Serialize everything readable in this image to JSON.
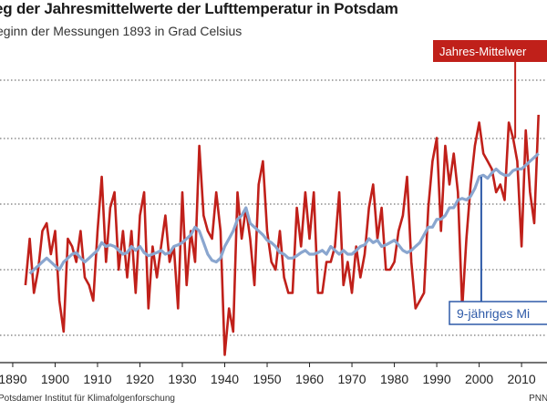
{
  "header": {
    "title": "eg der Jahresmittelwerte der Lufttemperatur in Potsdam",
    "subtitle": "eginn der Messungen 1893 in Grad Celsius"
  },
  "footer": {
    "source": "Potsdamer Institut für Klimafolgenforschung",
    "credit": "PNN/"
  },
  "colors": {
    "annual": "#c0201a",
    "moving_avg": "#8aa6cf",
    "grid": "#555555",
    "label_blue": "#2e5aa8"
  },
  "chart_data": {
    "type": "line",
    "title": "",
    "xlabel": "",
    "ylabel": "",
    "xlim": [
      1887,
      2016
    ],
    "ylim": [
      7.2,
      10.8
    ],
    "x_ticks": [
      "1890",
      "1900",
      "1910",
      "1920",
      "1930",
      "1940",
      "1950",
      "1960",
      "1970",
      "1980",
      "1990",
      "2000",
      "2010"
    ],
    "grid": "horizontal",
    "annotations": [
      "Jahres-Mittelwer",
      "9-jähriges Mi"
    ],
    "series": [
      {
        "name": "Jahres-Mittelwer",
        "x": [
          1893,
          1894,
          1895,
          1896,
          1897,
          1898,
          1899,
          1900,
          1901,
          1902,
          1903,
          1904,
          1905,
          1906,
          1907,
          1908,
          1909,
          1910,
          1911,
          1912,
          1913,
          1914,
          1915,
          1916,
          1917,
          1918,
          1919,
          1920,
          1921,
          1922,
          1923,
          1924,
          1925,
          1926,
          1927,
          1928,
          1929,
          1930,
          1931,
          1932,
          1933,
          1934,
          1935,
          1936,
          1937,
          1938,
          1939,
          1940,
          1941,
          1942,
          1943,
          1944,
          1945,
          1946,
          1947,
          1948,
          1949,
          1950,
          1951,
          1952,
          1953,
          1954,
          1955,
          1956,
          1957,
          1958,
          1959,
          1960,
          1961,
          1962,
          1963,
          1964,
          1965,
          1966,
          1967,
          1968,
          1969,
          1970,
          1971,
          1972,
          1973,
          1974,
          1975,
          1976,
          1977,
          1978,
          1979,
          1980,
          1981,
          1982,
          1983,
          1984,
          1985,
          1986,
          1987,
          1988,
          1989,
          1990,
          1991,
          1992,
          1993,
          1994,
          1995,
          1996,
          1997,
          1998,
          1999,
          2000,
          2001,
          2002,
          2003,
          2004,
          2005,
          2006,
          2007,
          2008,
          2009,
          2010,
          2011,
          2012,
          2013,
          2014
        ],
        "values": [
          8.2,
          8.8,
          8.1,
          8.4,
          8.9,
          9.0,
          8.6,
          8.9,
          8.0,
          7.6,
          8.8,
          8.7,
          8.5,
          8.9,
          8.3,
          8.2,
          8.0,
          8.9,
          9.6,
          8.5,
          9.2,
          9.4,
          8.4,
          8.9,
          8.3,
          8.9,
          8.1,
          9.1,
          9.4,
          7.9,
          8.7,
          8.3,
          8.7,
          9.1,
          8.5,
          8.7,
          7.9,
          9.4,
          8.2,
          8.9,
          8.5,
          10.0,
          9.1,
          8.9,
          8.8,
          9.4,
          8.9,
          7.3,
          7.9,
          7.6,
          9.4,
          8.8,
          9.2,
          8.8,
          8.2,
          9.5,
          9.8,
          8.9,
          8.5,
          8.4,
          8.9,
          8.3,
          8.1,
          8.1,
          9.2,
          8.7,
          9.4,
          8.8,
          9.4,
          8.1,
          8.1,
          8.5,
          8.5,
          8.7,
          9.4,
          8.2,
          8.5,
          8.1,
          8.7,
          8.3,
          8.6,
          9.2,
          9.5,
          8.8,
          9.2,
          8.4,
          8.4,
          8.5,
          8.9,
          9.1,
          9.6,
          8.5,
          7.9,
          8.0,
          8.1,
          9.2,
          9.8,
          10.1,
          8.9,
          10.0,
          9.5,
          9.9,
          9.4,
          7.9,
          8.8,
          9.5,
          10.0,
          10.3,
          9.9,
          9.8,
          9.7,
          9.4,
          9.5,
          9.3,
          10.3,
          10.1,
          9.8,
          8.7,
          10.2,
          9.4,
          9.0,
          10.4
        ]
      },
      {
        "name": "9-jähriges Mi",
        "x": [
          1894,
          1895,
          1896,
          1897,
          1898,
          1899,
          1900,
          1901,
          1902,
          1903,
          1904,
          1905,
          1906,
          1907,
          1908,
          1909,
          1910,
          1911,
          1912,
          1913,
          1914,
          1915,
          1916,
          1917,
          1918,
          1919,
          1920,
          1921,
          1922,
          1923,
          1924,
          1925,
          1926,
          1927,
          1928,
          1929,
          1930,
          1931,
          1932,
          1933,
          1934,
          1935,
          1936,
          1937,
          1938,
          1939,
          1940,
          1941,
          1942,
          1943,
          1944,
          1945,
          1946,
          1947,
          1948,
          1949,
          1950,
          1951,
          1952,
          1953,
          1954,
          1955,
          1956,
          1957,
          1958,
          1959,
          1960,
          1961,
          1962,
          1963,
          1964,
          1965,
          1966,
          1967,
          1968,
          1969,
          1970,
          1971,
          1972,
          1973,
          1974,
          1975,
          1976,
          1977,
          1978,
          1979,
          1980,
          1981,
          1982,
          1983,
          1984,
          1985,
          1986,
          1987,
          1988,
          1989,
          1990,
          1991,
          1992,
          1993,
          1994,
          1995,
          1996,
          1997,
          1998,
          1999,
          2000,
          2001,
          2002,
          2003,
          2004,
          2005,
          2006,
          2007,
          2008,
          2009,
          2010,
          2011,
          2012,
          2013,
          2014
        ],
        "values": [
          8.35,
          8.4,
          8.45,
          8.5,
          8.55,
          8.5,
          8.45,
          8.4,
          8.5,
          8.55,
          8.6,
          8.62,
          8.55,
          8.5,
          8.55,
          8.6,
          8.65,
          8.75,
          8.7,
          8.72,
          8.7,
          8.65,
          8.6,
          8.62,
          8.7,
          8.65,
          8.7,
          8.62,
          8.58,
          8.6,
          8.62,
          8.65,
          8.6,
          8.62,
          8.7,
          8.72,
          8.75,
          8.8,
          8.85,
          8.95,
          8.9,
          8.75,
          8.6,
          8.52,
          8.5,
          8.55,
          8.7,
          8.8,
          8.9,
          9.05,
          9.1,
          9.2,
          9.0,
          8.95,
          8.9,
          8.85,
          8.78,
          8.75,
          8.7,
          8.62,
          8.6,
          8.55,
          8.55,
          8.58,
          8.62,
          8.65,
          8.6,
          8.6,
          8.62,
          8.65,
          8.6,
          8.7,
          8.65,
          8.6,
          8.65,
          8.6,
          8.6,
          8.65,
          8.7,
          8.72,
          8.8,
          8.75,
          8.78,
          8.7,
          8.72,
          8.75,
          8.78,
          8.72,
          8.65,
          8.62,
          8.65,
          8.7,
          8.75,
          8.85,
          8.95,
          8.95,
          9.05,
          9.05,
          9.1,
          9.2,
          9.2,
          9.3,
          9.32,
          9.3,
          9.35,
          9.45,
          9.6,
          9.62,
          9.58,
          9.65,
          9.7,
          9.65,
          9.62,
          9.62,
          9.68,
          9.7,
          9.7,
          9.75,
          9.8,
          9.85,
          9.9
        ]
      }
    ]
  }
}
